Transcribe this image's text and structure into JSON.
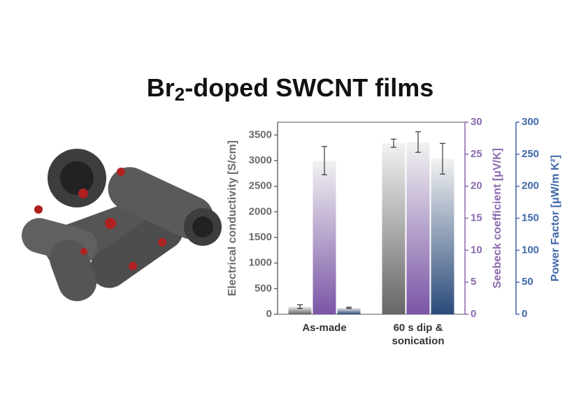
{
  "chart_data": {
    "type": "bar",
    "title": [
      "Br",
      "2",
      "-doped SWCNT films"
    ],
    "categories": [
      "As-made",
      "60 s dip & sonication"
    ],
    "ylabel": "Electrical conductivity [S/cm]",
    "ylim": [
      0,
      3750
    ],
    "yticks": [
      0,
      500,
      1000,
      1500,
      2000,
      2500,
      3000,
      3500
    ],
    "ycolor": "#6b6b6b",
    "y2label": "Seebeck coefficient [μV/K]",
    "y2lim": [
      0,
      30
    ],
    "y2ticks": [
      0,
      5,
      10,
      15,
      20,
      25,
      30
    ],
    "y2color": "#8a68ad",
    "y3label": "Power Factor [μW/m K²]",
    "y3lim": [
      0,
      300
    ],
    "y3ticks": [
      0,
      50,
      100,
      150,
      200,
      250,
      300
    ],
    "y3color": "#3f67a8",
    "series": [
      {
        "color": "#666666",
        "axis": "y",
        "values": [
          150,
          3340
        ],
        "errors": [
          35,
          80
        ]
      },
      {
        "color": "#7a55a6",
        "axis": "y2",
        "values": [
          24,
          26.9
        ],
        "errors": [
          2.2,
          1.6
        ]
      },
      {
        "color": "#2a4a7a",
        "axis": "y3",
        "values": [
          10,
          243
        ],
        "errors": [
          1,
          24
        ]
      }
    ]
  }
}
